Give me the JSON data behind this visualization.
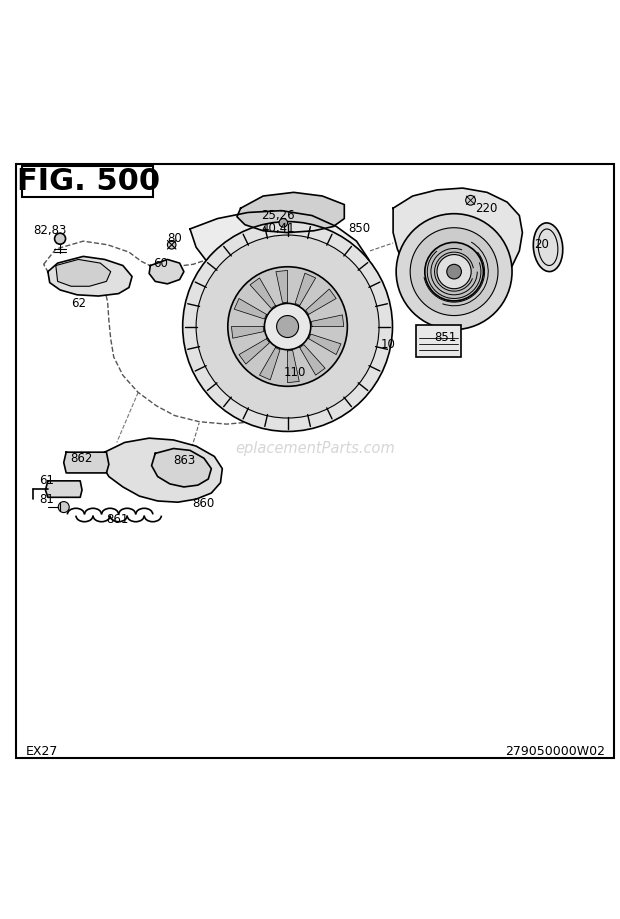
{
  "title": "FIG. 500",
  "footer_left": "EX27",
  "footer_right": "279050000W02",
  "watermark": "eplacementParts.com",
  "bg_color": "#ffffff",
  "line_color": "#000000",
  "title_fontsize": 22,
  "footer_fontsize": 9,
  "label_fontsize": 8.5
}
